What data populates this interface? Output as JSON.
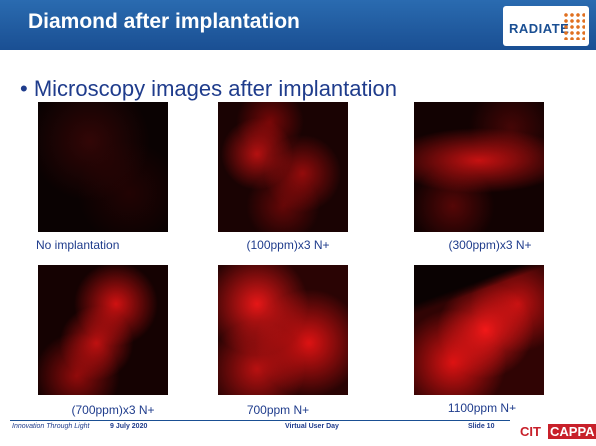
{
  "header": {
    "title": "Diamond after implantation",
    "logo": "RADIATE"
  },
  "bullet": "Microscopy images after implantation",
  "images": [
    {
      "caption": "No implantation"
    },
    {
      "caption": "(100ppm)x3 N+"
    },
    {
      "caption": "(300ppm)x3 N+"
    },
    {
      "caption": "(700ppm)x3 N+"
    },
    {
      "caption": "700ppm N+"
    },
    {
      "caption": "1100ppm N+"
    }
  ],
  "footer": {
    "tagline": "Innovation Through Light",
    "date": "9 July 2020",
    "event": "Virtual User Day",
    "slide": "Slide 10",
    "logo_left": "CIT",
    "logo_right": "CAPPA"
  }
}
